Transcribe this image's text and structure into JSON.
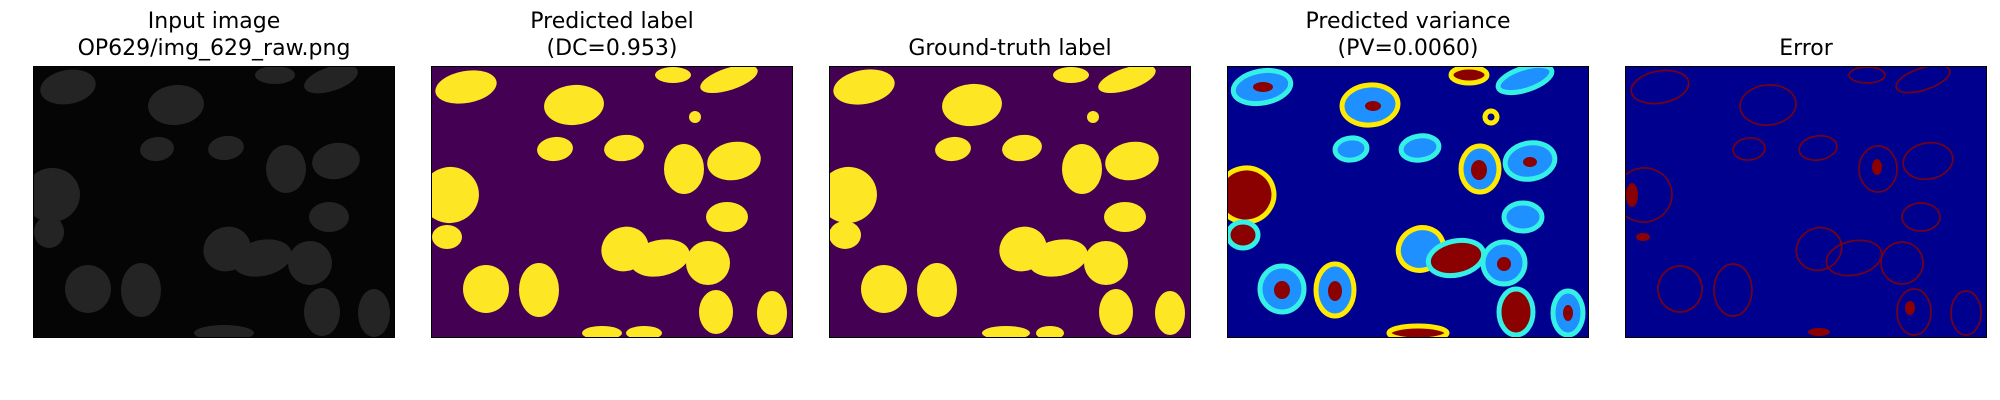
{
  "figure": {
    "panels": [
      {
        "title_line_1": "Input image",
        "title_line_2": "OP629/img_629_raw.png",
        "image_kind": "grayscale microscopy cell nuclei"
      },
      {
        "title_line_1": "Predicted label",
        "title_line_2": "(DC=0.953)",
        "image_kind": "binary segmentation mask"
      },
      {
        "title_line_1": "",
        "title_line_2": "Ground-truth label",
        "image_kind": "binary segmentation mask"
      },
      {
        "title_line_1": "Predicted variance",
        "title_line_2": "(PV=0.0060)",
        "image_kind": "variance heatmap"
      },
      {
        "title_line_1": "",
        "title_line_2": "Error",
        "image_kind": "error heatmap"
      }
    ],
    "colors": {
      "mask_background": "#440154",
      "mask_foreground": "#fde725",
      "jet_background": "#00008f",
      "jet_low": "#1e90ff",
      "jet_mid": "#35f0e5",
      "jet_yellow": "#ffea00",
      "jet_high": "#8b0000",
      "raw_background": "#050505",
      "raw_nucleus": "#242424"
    }
  }
}
